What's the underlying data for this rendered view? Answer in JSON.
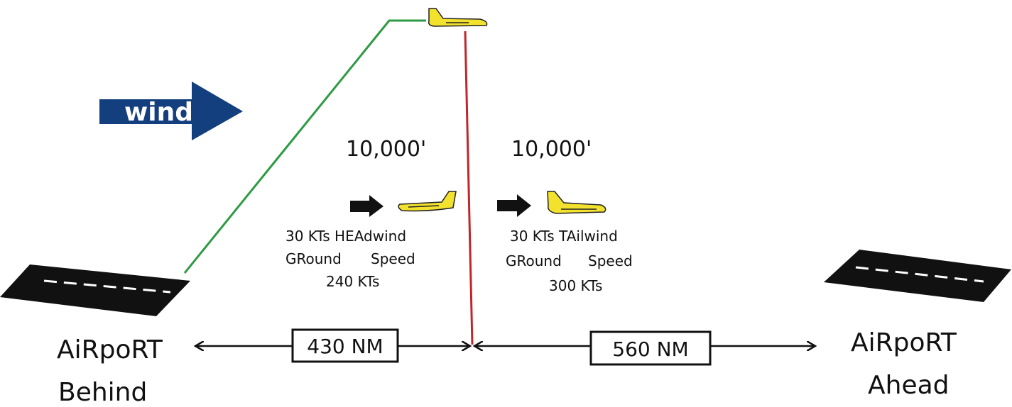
{
  "wind": {
    "label": "wind",
    "color": "#143f7e"
  },
  "colors": {
    "path_line": "#2e9a44",
    "divider_line": "#c0262b",
    "plane": "#f2e22e",
    "runway": "#111111"
  },
  "left": {
    "altitude": "10,000'",
    "wind_line": "30 KTs HEAdwind",
    "gs_label_a": "GRound",
    "gs_label_b": "Speed",
    "gs_value": "240 KTs"
  },
  "right": {
    "altitude": "10,000'",
    "wind_line": "30 KTs TAilwind",
    "gs_label_a": "GRound",
    "gs_label_b": "Speed",
    "gs_value": "300 KTs"
  },
  "distances": {
    "behind": "430 NM",
    "ahead": "560 NM"
  },
  "airports": {
    "behind_line1": "AiRpoRT",
    "behind_line2": "Behind",
    "ahead_line1": "AiRpoRT",
    "ahead_line2": "Ahead"
  }
}
